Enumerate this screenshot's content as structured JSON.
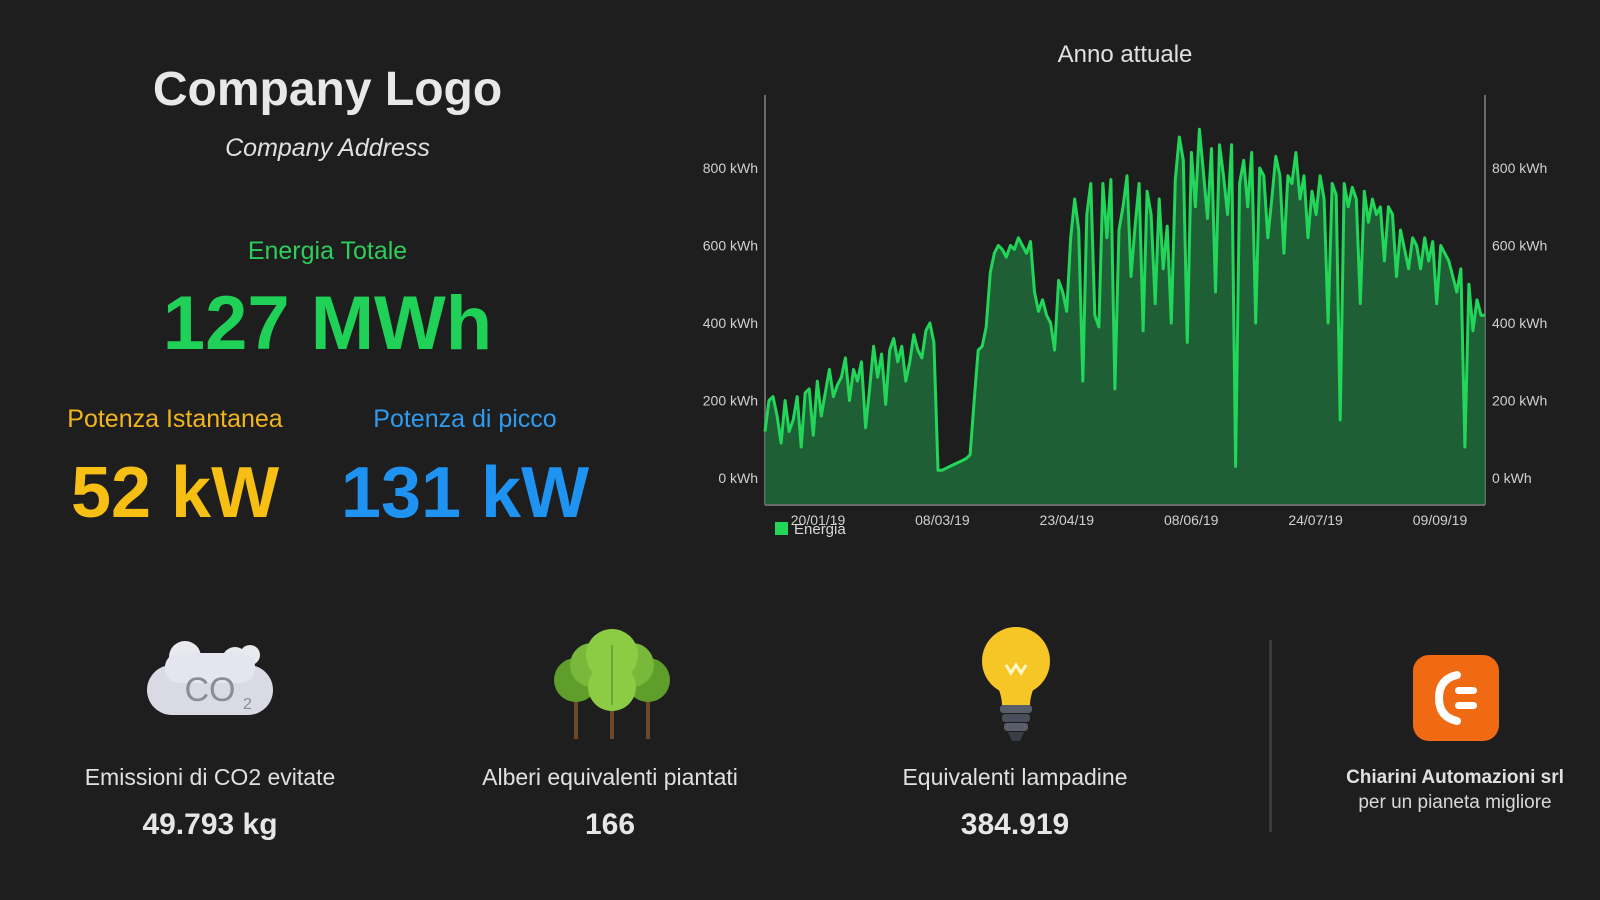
{
  "header": {
    "company_logo": "Company Logo",
    "company_address": "Company Address"
  },
  "energy": {
    "label": "Energia Totale",
    "value": "127 MWh"
  },
  "instant_power": {
    "label": "Potenza Istantanea",
    "value": "52 kW"
  },
  "peak_power": {
    "label": "Potenza di picco",
    "value": "131 kW"
  },
  "stats": {
    "co2": {
      "label": "Emissioni di CO2 evitate",
      "value": "49.793 kg",
      "icon": "co2-cloud-icon"
    },
    "trees": {
      "label": "Alberi equivalenti piantati",
      "value": "166",
      "icon": "trees-icon"
    },
    "bulbs": {
      "label": "Equivalenti lampadine",
      "value": "384.919",
      "icon": "lightbulb-icon"
    }
  },
  "brand": {
    "name": "Chiarini Automazioni srl",
    "tagline": "per un pianeta migliore",
    "icon": "brand-logo-icon",
    "color": "#f06a14"
  },
  "colors": {
    "background": "#1e1e1e",
    "energy_green": "#1fd157",
    "instant_yellow": "#f7bf13",
    "peak_blue": "#1f93f2"
  },
  "chart_data": {
    "type": "area",
    "title": "Anno attuale",
    "series": [
      {
        "name": "Energia",
        "color": "#1fd157"
      }
    ],
    "y_ticks": [
      "0 kWh",
      "200 kWh",
      "400 kWh",
      "600 kWh",
      "800 kWh"
    ],
    "ylim": [
      0,
      900
    ],
    "x_tick_labels": [
      "20/01/19",
      "08/03/19",
      "23/04/19",
      "08/06/19",
      "24/07/19",
      "09/09/19"
    ],
    "grid": false,
    "legend": "bottom-left",
    "values": [
      120,
      200,
      210,
      160,
      90,
      200,
      120,
      150,
      210,
      80,
      220,
      230,
      110,
      250,
      160,
      220,
      280,
      210,
      240,
      260,
      310,
      200,
      280,
      250,
      300,
      130,
      230,
      340,
      260,
      320,
      190,
      330,
      360,
      300,
      340,
      250,
      300,
      370,
      330,
      310,
      380,
      400,
      350,
      20,
      20,
      25,
      30,
      35,
      40,
      45,
      50,
      60,
      200,
      330,
      340,
      390,
      530,
      580,
      600,
      590,
      570,
      600,
      590,
      620,
      600,
      580,
      610,
      480,
      430,
      460,
      420,
      400,
      330,
      510,
      480,
      430,
      620,
      720,
      640,
      250,
      680,
      760,
      420,
      390,
      760,
      620,
      770,
      230,
      640,
      700,
      780,
      520,
      650,
      760,
      380,
      740,
      680,
      450,
      720,
      540,
      650,
      400,
      770,
      880,
      820,
      350,
      840,
      700,
      900,
      790,
      670,
      850,
      480,
      860,
      780,
      680,
      860,
      30,
      760,
      820,
      700,
      840,
      400,
      800,
      780,
      620,
      720,
      830,
      780,
      580,
      780,
      760,
      840,
      720,
      780,
      620,
      740,
      680,
      780,
      720,
      400,
      760,
      730,
      150,
      760,
      700,
      750,
      720,
      450,
      740,
      660,
      720,
      680,
      700,
      560,
      700,
      680,
      520,
      640,
      590,
      540,
      620,
      600,
      540,
      620,
      560,
      610,
      450,
      600,
      580,
      560,
      520,
      480,
      540,
      80,
      500,
      380,
      460,
      420,
      420
    ]
  }
}
